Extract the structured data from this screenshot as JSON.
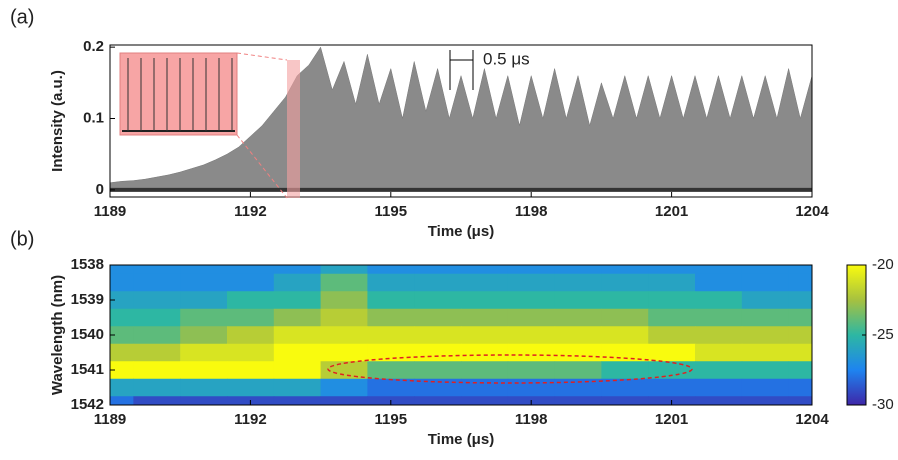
{
  "chart_data": [
    {
      "type": "area",
      "label": "(a)",
      "xlabel": "Time (μs)",
      "ylabel": "Intensity (a.u.)",
      "annotation": "0.5 μs",
      "color": "#8a8a8a",
      "x": [
        1189,
        1189.25,
        1189.5,
        1189.75,
        1190,
        1190.25,
        1190.5,
        1190.75,
        1191,
        1191.25,
        1191.5,
        1191.75,
        1192,
        1192.25,
        1192.5,
        1192.75,
        1193,
        1193.25,
        1193.5,
        1193.75,
        1194,
        1194.25,
        1194.5,
        1194.75,
        1195,
        1195.25,
        1195.5,
        1195.75,
        1196,
        1196.25,
        1196.5,
        1196.75,
        1197,
        1197.25,
        1197.5,
        1197.75,
        1198,
        1198.25,
        1198.5,
        1198.75,
        1199,
        1199.25,
        1199.5,
        1199.75,
        1200,
        1200.25,
        1200.5,
        1200.75,
        1201,
        1201.25,
        1201.5,
        1201.75,
        1202,
        1202.25,
        1202.5,
        1202.75,
        1203,
        1203.25,
        1203.5,
        1203.75,
        1204
      ],
      "values": [
        0.01,
        0.012,
        0.013,
        0.015,
        0.018,
        0.021,
        0.025,
        0.03,
        0.035,
        0.042,
        0.05,
        0.06,
        0.075,
        0.09,
        0.11,
        0.13,
        0.16,
        0.175,
        0.2,
        0.14,
        0.18,
        0.12,
        0.19,
        0.12,
        0.17,
        0.1,
        0.18,
        0.11,
        0.17,
        0.1,
        0.16,
        0.1,
        0.17,
        0.1,
        0.16,
        0.09,
        0.16,
        0.1,
        0.17,
        0.1,
        0.16,
        0.09,
        0.15,
        0.1,
        0.16,
        0.1,
        0.16,
        0.1,
        0.16,
        0.1,
        0.16,
        0.1,
        0.16,
        0.1,
        0.16,
        0.1,
        0.16,
        0.1,
        0.17,
        0.1,
        0.16
      ],
      "xlim": [
        1189,
        1204
      ],
      "xticks": [
        1189,
        1192,
        1195,
        1198,
        1201,
        1204
      ],
      "ylim": [
        -0.01,
        0.203
      ],
      "yticks": [
        0,
        0.1,
        0.2
      ]
    },
    {
      "type": "heatmap",
      "label": "(b)",
      "xlabel": "Time (μs)",
      "ylabel": "Wavelength (nm)",
      "colormap": "parula",
      "x": [
        1189,
        1190,
        1191,
        1192,
        1193,
        1194,
        1195,
        1196,
        1197,
        1198,
        1199,
        1200,
        1201,
        1202,
        1203,
        1204
      ],
      "y": [
        1538,
        1538.5,
        1539,
        1539.5,
        1540,
        1540.5,
        1541,
        1541.5,
        1542
      ],
      "z": [
        [
          -27,
          -27,
          -27,
          -27,
          -27,
          -26,
          -27,
          -27,
          -27,
          -27,
          -27,
          -27,
          -27,
          -27,
          -27,
          -27
        ],
        [
          -27,
          -27,
          -27,
          -27,
          -26,
          -24,
          -26,
          -26,
          -26,
          -26,
          -26,
          -26,
          -26,
          -27,
          -27,
          -27
        ],
        [
          -26,
          -26,
          -26,
          -25,
          -25,
          -23,
          -25,
          -25,
          -25,
          -25,
          -25,
          -25,
          -25,
          -25,
          -26,
          -26
        ],
        [
          -25,
          -25,
          -24,
          -24,
          -23,
          -22,
          -23,
          -23,
          -23,
          -23,
          -23,
          -23,
          -24,
          -24,
          -24,
          -24
        ],
        [
          -24,
          -24,
          -23,
          -22,
          -21,
          -21,
          -21,
          -21,
          -21,
          -21,
          -21,
          -21,
          -22,
          -22,
          -22,
          -22
        ],
        [
          -22,
          -22,
          -21,
          -21,
          -20,
          -20,
          -20,
          -20,
          -20,
          -20,
          -20,
          -20,
          -20,
          -21,
          -21,
          -21
        ],
        [
          -20,
          -20,
          -20,
          -20,
          -20,
          -22,
          -24,
          -24,
          -24,
          -24,
          -24,
          -25,
          -25,
          -25,
          -25,
          -25
        ],
        [
          -26,
          -26,
          -26,
          -26,
          -26,
          -27,
          -28,
          -28,
          -28,
          -28,
          -28,
          -28,
          -28,
          -28,
          -28,
          -28
        ],
        [
          -28,
          -29,
          -29,
          -29,
          -29,
          -29,
          -29,
          -29,
          -29,
          -29,
          -29,
          -29,
          -29,
          -29,
          -29,
          -29
        ]
      ],
      "xlim": [
        1189,
        1204
      ],
      "xticks": [
        1189,
        1192,
        1195,
        1198,
        1201,
        1204
      ],
      "ylim": [
        1542,
        1538
      ],
      "yticks": [
        1538,
        1539,
        1540,
        1541,
        1542
      ],
      "clim": [
        -30,
        -20
      ],
      "cticks": [
        -20,
        -25,
        -30
      ]
    }
  ]
}
